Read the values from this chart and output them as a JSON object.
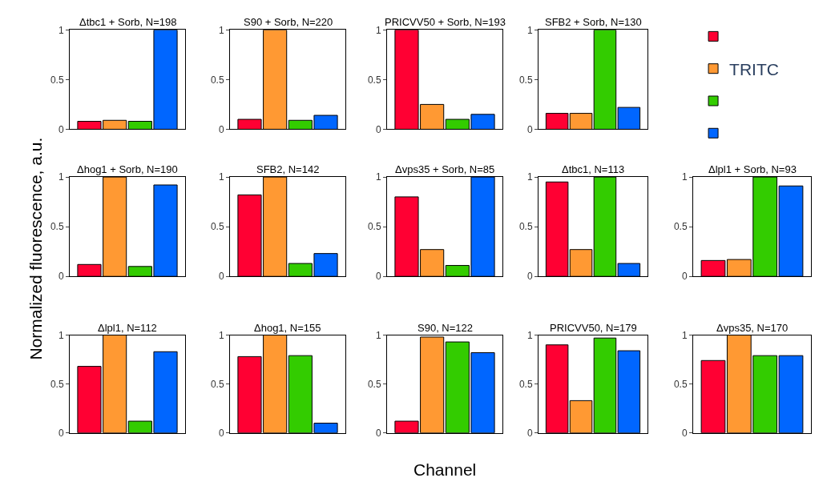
{
  "chart_data": [
    {
      "type": "bar",
      "title": "Δtbc1 + Sorb, N=198",
      "categories": [
        null
      ],
      "ylim": [
        0,
        1
      ],
      "yticks": [
        0,
        0.5,
        1
      ],
      "tick_labels": "y",
      "series": [
        {
          "color": "#ff0033",
          "values": [
            0.08
          ]
        },
        {
          "color": "#ff9933",
          "values": [
            0.09
          ]
        },
        {
          "color": "#33cc00",
          "values": [
            0.08
          ]
        },
        {
          "color": "#0066ff",
          "values": [
            1
          ]
        }
      ]
    },
    {
      "type": "bar",
      "title": "S90 + Sorb, N=220",
      "categories": [
        null
      ],
      "ylim": [
        0,
        1
      ],
      "yticks": [
        0,
        0.5,
        1
      ],
      "tick_labels": "y",
      "series": [
        {
          "color": "#ff0033",
          "values": [
            0.1
          ]
        },
        {
          "color": "#ff9933",
          "values": [
            1
          ]
        },
        {
          "color": "#33cc00",
          "values": [
            0.09
          ]
        },
        {
          "color": "#0066ff",
          "values": [
            0.14
          ]
        }
      ]
    },
    {
      "type": "bar",
      "title": "PRICVV50 + Sorb, N=193",
      "categories": [
        null
      ],
      "ylim": [
        0,
        1
      ],
      "yticks": [
        0,
        0.5,
        1
      ],
      "tick_labels": "y",
      "series": [
        {
          "color": "#ff0033",
          "values": [
            1
          ]
        },
        {
          "color": "#ff9933",
          "values": [
            0.25
          ]
        },
        {
          "color": "#33cc00",
          "values": [
            0.1
          ]
        },
        {
          "color": "#0066ff",
          "values": [
            0.15
          ]
        }
      ]
    },
    {
      "type": "bar",
      "title": "SFB2 + Sorb, N=130",
      "categories": [
        null
      ],
      "ylim": [
        0,
        1
      ],
      "yticks": [
        0,
        0.5,
        1
      ],
      "tick_labels": "y",
      "legend": "right",
      "series": [
        {
          "name": null,
          "color": "#ff0033",
          "values": [
            0.16
          ]
        },
        {
          "name": "TRITC",
          "color": "#ff9933",
          "values": [
            0.16
          ]
        },
        {
          "name": null,
          "color": "#33cc00",
          "values": [
            1
          ]
        },
        {
          "name": null,
          "color": "#0066ff",
          "values": [
            0.22
          ]
        }
      ]
    },
    {
      "type": "bar",
      "title": "Δhog1 + Sorb, N=190",
      "ylabel": "Normalized fluorescence, a.u.",
      "categories": [
        null
      ],
      "ylim": [
        0,
        1
      ],
      "yticks": [
        0,
        0.5,
        1
      ],
      "tick_labels": "y",
      "series": [
        {
          "color": "#ff0033",
          "values": [
            0.12
          ]
        },
        {
          "color": "#ff9933",
          "values": [
            1
          ]
        },
        {
          "color": "#33cc00",
          "values": [
            0.1
          ]
        },
        {
          "color": "#0066ff",
          "values": [
            0.92
          ]
        }
      ]
    },
    {
      "type": "bar",
      "title": "SFB2, N=142",
      "categories": [
        null
      ],
      "ylim": [
        0,
        1
      ],
      "yticks": [
        0,
        0.5,
        1
      ],
      "tick_labels": "y",
      "series": [
        {
          "color": "#ff0033",
          "values": [
            0.82
          ]
        },
        {
          "color": "#ff9933",
          "values": [
            1
          ]
        },
        {
          "color": "#33cc00",
          "values": [
            0.13
          ]
        },
        {
          "color": "#0066ff",
          "values": [
            0.23
          ]
        }
      ]
    },
    {
      "type": "bar",
      "title": "Δvps35 + Sorb, N=85",
      "categories": [
        null
      ],
      "ylim": [
        0,
        1
      ],
      "yticks": [
        0,
        0.5,
        1
      ],
      "tick_labels": "y",
      "series": [
        {
          "color": "#ff0033",
          "values": [
            0.8
          ]
        },
        {
          "color": "#ff9933",
          "values": [
            0.27
          ]
        },
        {
          "color": "#33cc00",
          "values": [
            0.11
          ]
        },
        {
          "color": "#0066ff",
          "values": [
            1
          ]
        }
      ]
    },
    {
      "type": "bar",
      "title": "Δtbc1, N=113",
      "categories": [
        null
      ],
      "ylim": [
        0,
        1
      ],
      "yticks": [
        0,
        0.5,
        1
      ],
      "tick_labels": "y",
      "series": [
        {
          "color": "#ff0033",
          "values": [
            0.95
          ]
        },
        {
          "color": "#ff9933",
          "values": [
            0.27
          ]
        },
        {
          "color": "#33cc00",
          "values": [
            1
          ]
        },
        {
          "color": "#0066ff",
          "values": [
            0.13
          ]
        }
      ]
    },
    {
      "type": "bar",
      "title": "Δlpl1 + Sorb, N=93",
      "categories": [
        null
      ],
      "ylim": [
        0,
        1
      ],
      "yticks": [
        0,
        0.5,
        1
      ],
      "tick_labels": "y",
      "series": [
        {
          "color": "#ff0033",
          "values": [
            0.16
          ]
        },
        {
          "color": "#ff9933",
          "values": [
            0.17
          ]
        },
        {
          "color": "#33cc00",
          "values": [
            1
          ]
        },
        {
          "color": "#0066ff",
          "values": [
            0.91
          ]
        }
      ]
    },
    {
      "type": "bar",
      "title": "Δlpl1, N=112",
      "categories": [
        null
      ],
      "ylim": [
        0,
        1
      ],
      "yticks": [
        0,
        0.5,
        1
      ],
      "tick_labels": "y",
      "series": [
        {
          "color": "#ff0033",
          "values": [
            0.68
          ]
        },
        {
          "color": "#ff9933",
          "values": [
            1
          ]
        },
        {
          "color": "#33cc00",
          "values": [
            0.12
          ]
        },
        {
          "color": "#0066ff",
          "values": [
            0.83
          ]
        }
      ]
    },
    {
      "type": "bar",
      "title": "Δhog1, N=155",
      "categories": [
        null
      ],
      "ylim": [
        0,
        1
      ],
      "yticks": [
        0,
        0.5,
        1
      ],
      "tick_labels": "y",
      "series": [
        {
          "color": "#ff0033",
          "values": [
            0.78
          ]
        },
        {
          "color": "#ff9933",
          "values": [
            1
          ]
        },
        {
          "color": "#33cc00",
          "values": [
            0.79
          ]
        },
        {
          "color": "#0066ff",
          "values": [
            0.1
          ]
        }
      ]
    },
    {
      "type": "bar",
      "title": "S90, N=122",
      "xlabel": "Channel",
      "categories": [
        null
      ],
      "ylim": [
        0,
        1
      ],
      "yticks": [
        0,
        0.5,
        1
      ],
      "tick_labels": "y",
      "series": [
        {
          "color": "#ff0033",
          "values": [
            0.12
          ]
        },
        {
          "color": "#ff9933",
          "values": [
            0.98
          ]
        },
        {
          "color": "#33cc00",
          "values": [
            0.93
          ]
        },
        {
          "color": "#0066ff",
          "values": [
            0.82
          ]
        }
      ]
    },
    {
      "type": "bar",
      "title": "PRICVV50, N=179",
      "categories": [
        null
      ],
      "ylim": [
        0,
        1
      ],
      "yticks": [
        0,
        0.5,
        1
      ],
      "tick_labels": "y",
      "series": [
        {
          "color": "#ff0033",
          "values": [
            0.9
          ]
        },
        {
          "color": "#ff9933",
          "values": [
            0.33
          ]
        },
        {
          "color": "#33cc00",
          "values": [
            0.97
          ]
        },
        {
          "color": "#0066ff",
          "values": [
            0.84
          ]
        }
      ]
    },
    {
      "type": "bar",
      "title": "Δvps35, N=170",
      "categories": [
        null
      ],
      "ylim": [
        0,
        1
      ],
      "yticks": [
        0,
        0.5,
        1
      ],
      "tick_labels": "y",
      "series": [
        {
          "color": "#ff0033",
          "values": [
            0.74
          ]
        },
        {
          "color": "#ff9933",
          "values": [
            1
          ]
        },
        {
          "color": "#33cc00",
          "values": [
            0.79
          ]
        },
        {
          "color": "#0066ff",
          "values": [
            0.79
          ]
        }
      ]
    }
  ]
}
